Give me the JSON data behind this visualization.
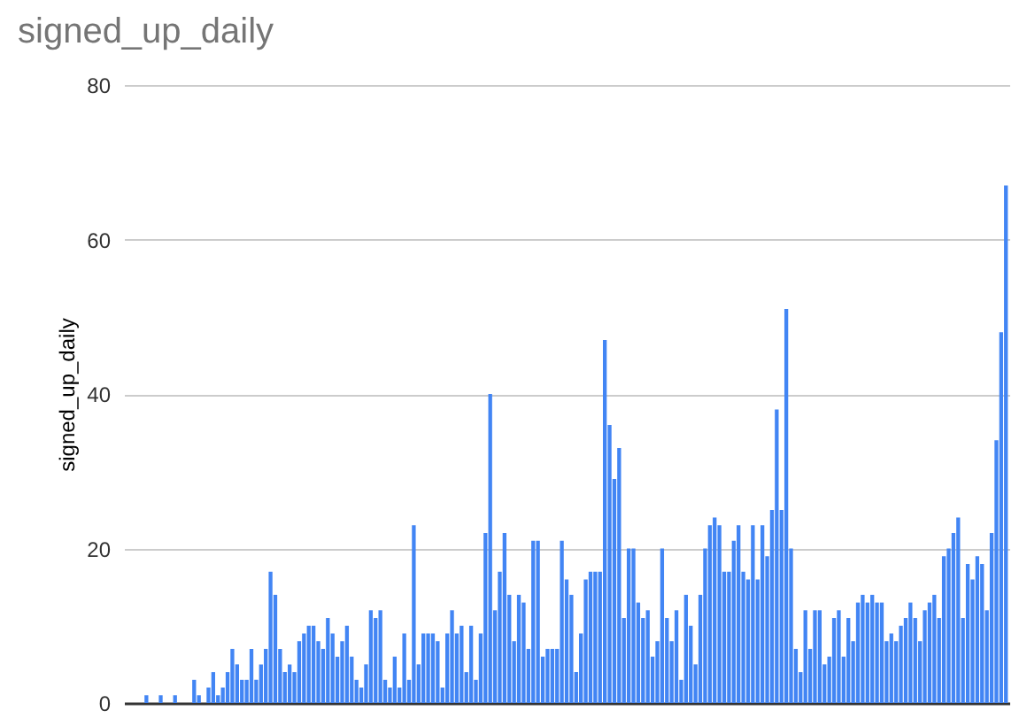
{
  "chart_data": {
    "type": "bar",
    "title": "signed_up_daily",
    "ylabel": "signed_up_daily",
    "color": "#4285f4",
    "values": [
      0,
      0,
      0,
      0,
      1,
      0,
      0,
      1,
      0,
      0,
      1,
      0,
      0,
      0,
      3,
      1,
      0,
      2,
      4,
      1,
      2,
      4,
      7,
      5,
      3,
      3,
      7,
      3,
      5,
      7,
      17,
      14,
      7,
      4,
      5,
      4,
      8,
      9,
      10,
      10,
      8,
      7,
      11,
      9,
      6,
      8,
      10,
      6,
      3,
      2,
      5,
      12,
      11,
      12,
      3,
      2,
      6,
      2,
      9,
      3,
      23,
      5,
      9,
      9,
      9,
      8,
      2,
      9,
      12,
      9,
      10,
      4,
      10,
      3,
      9,
      22,
      40,
      12,
      17,
      22,
      14,
      8,
      14,
      13,
      7,
      21,
      21,
      6,
      7,
      7,
      7,
      21,
      16,
      14,
      4,
      9,
      16,
      17,
      17,
      17,
      47,
      36,
      29,
      33,
      11,
      20,
      20,
      13,
      11,
      12,
      6,
      8,
      20,
      11,
      8,
      12,
      3,
      14,
      10,
      5,
      14,
      20,
      23,
      24,
      23,
      17,
      17,
      21,
      23,
      17,
      16,
      23,
      16,
      23,
      19,
      25,
      38,
      25,
      51,
      20,
      7,
      4,
      12,
      7,
      12,
      12,
      5,
      6,
      11,
      12,
      6,
      11,
      8,
      13,
      14,
      13,
      14,
      13,
      13,
      8,
      9,
      8,
      10,
      11,
      13,
      11,
      8,
      12,
      13,
      14,
      11,
      19,
      20,
      22,
      24,
      11,
      18,
      16,
      19,
      18,
      12,
      22,
      34,
      48,
      67
    ],
    "ylim": [
      0,
      80
    ],
    "yticks": [
      0,
      20,
      40,
      60,
      80
    ],
    "grid": "y",
    "tick_labels": "y"
  }
}
